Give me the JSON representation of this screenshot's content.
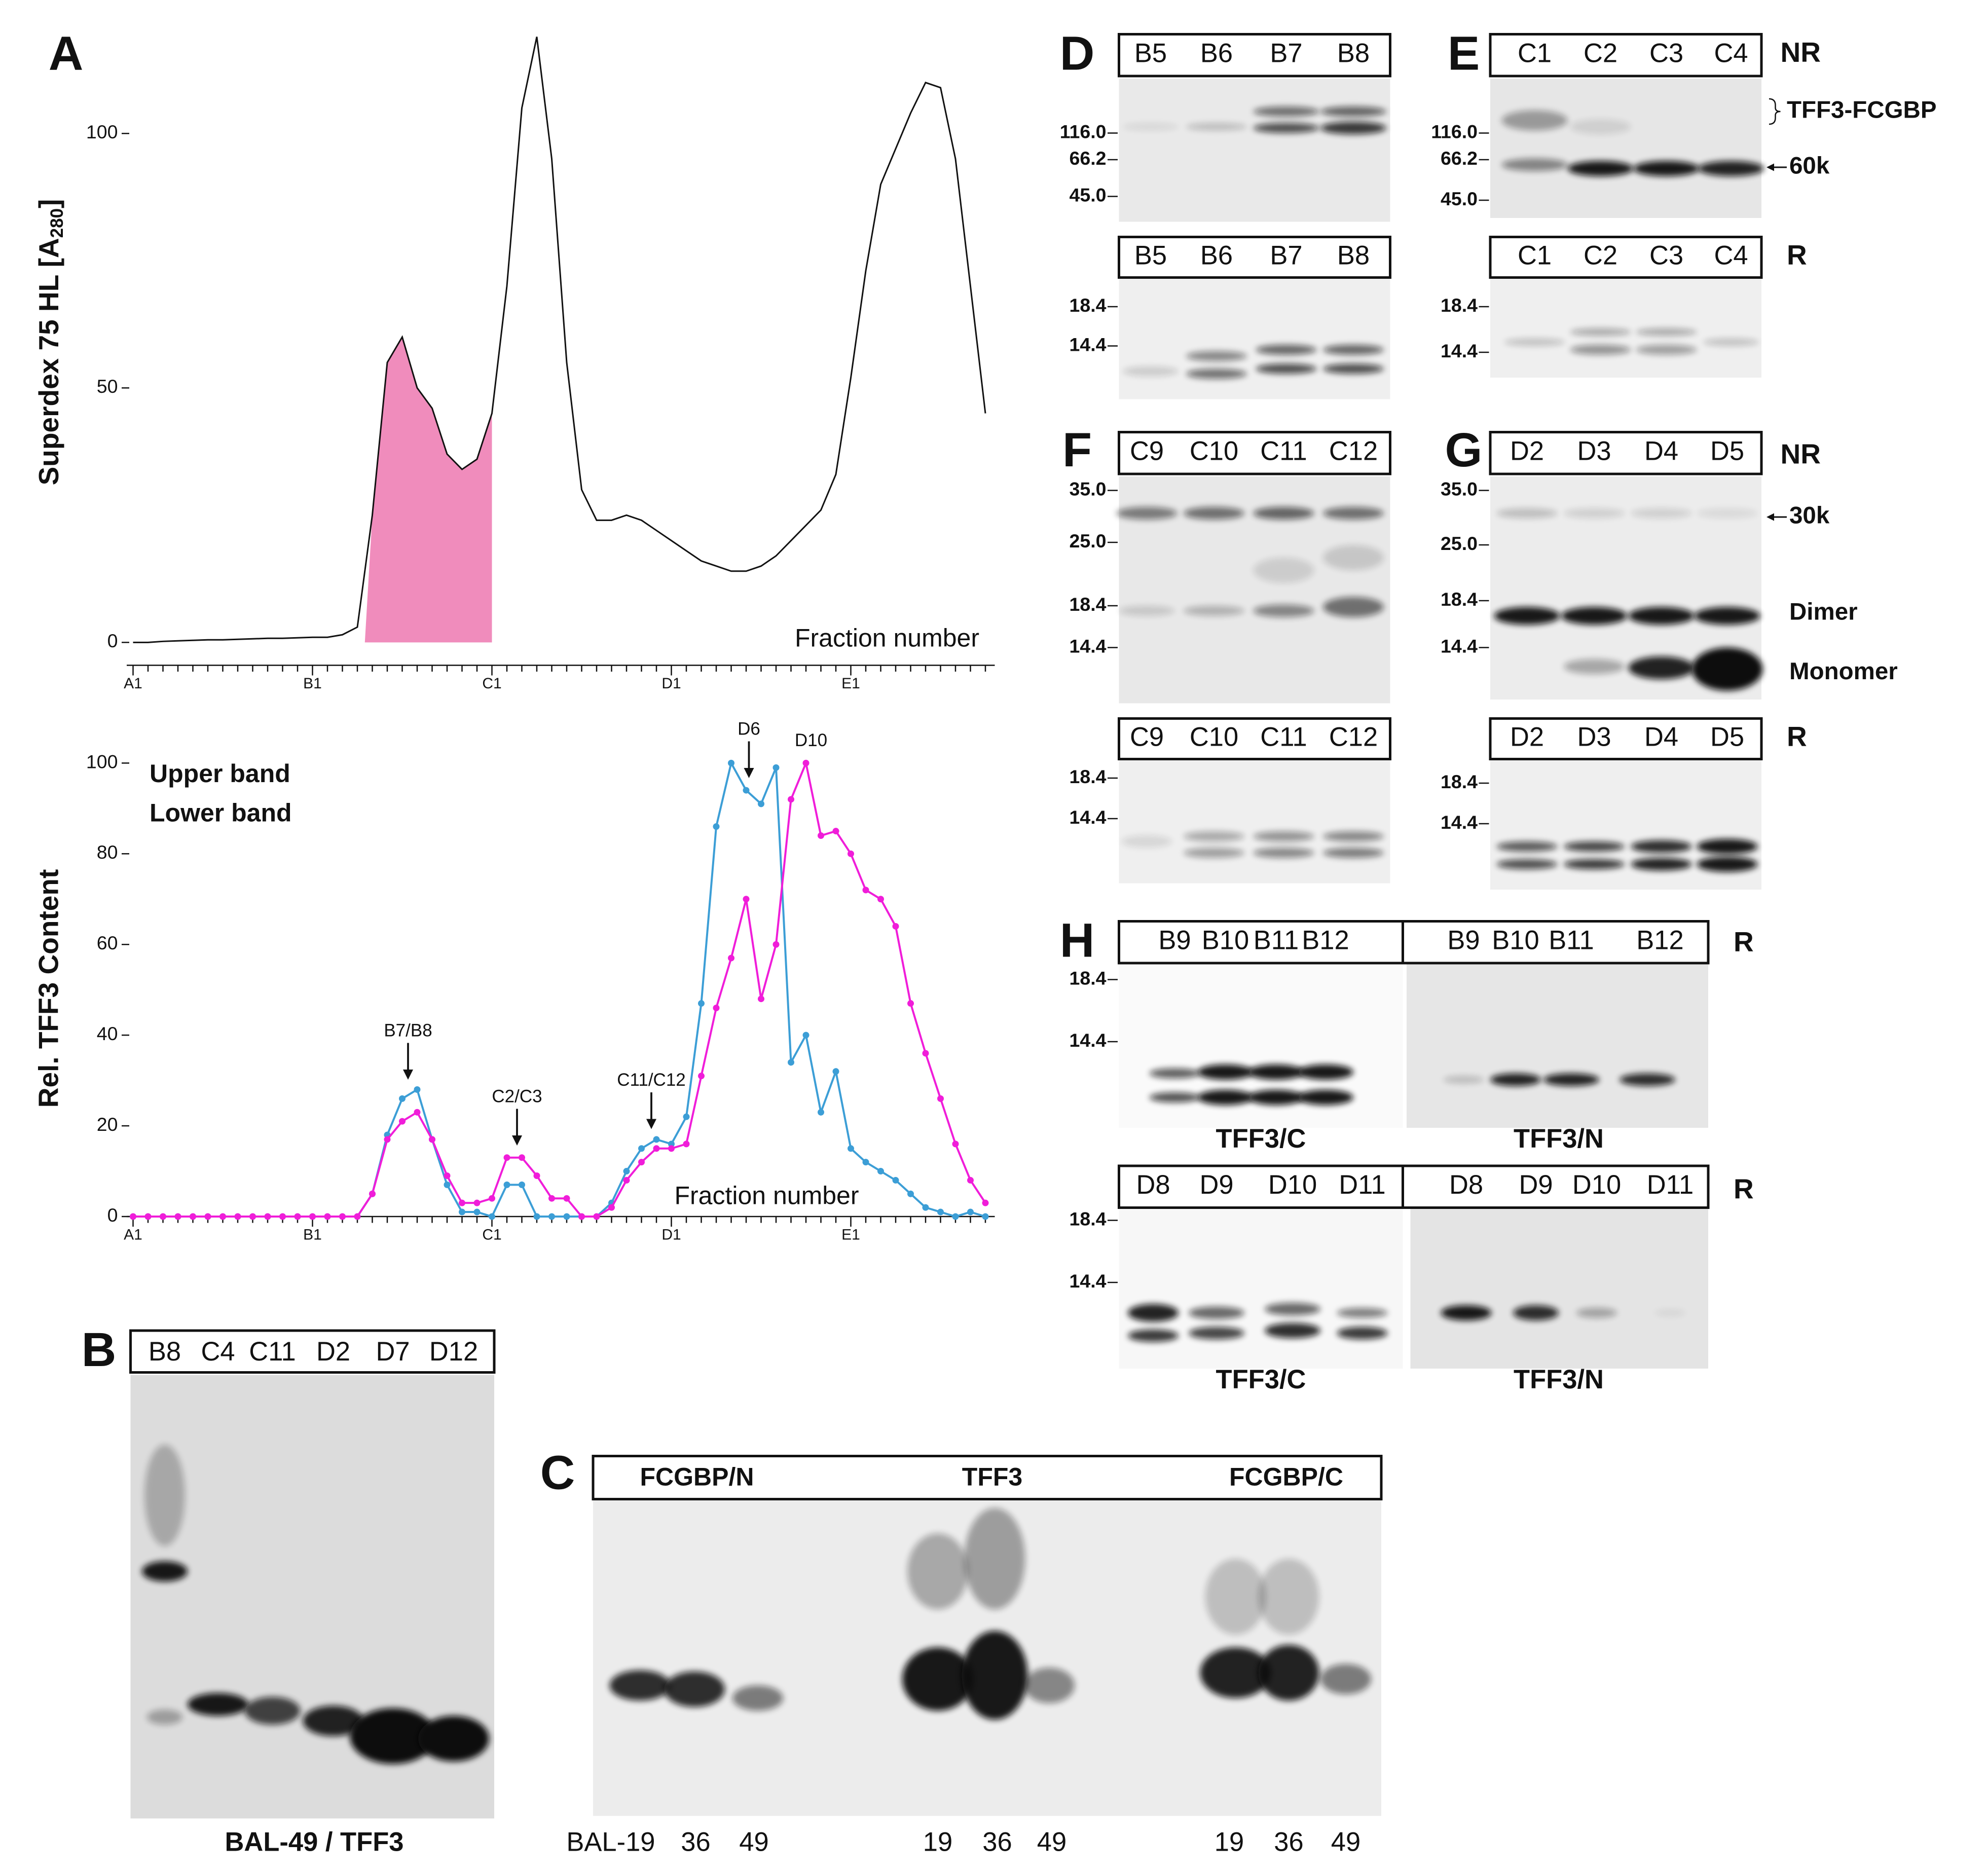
{
  "panel_a_label": "A",
  "chart_data": [
    {
      "type": "line",
      "ylabel": "Superdex 75 HL [A",
      "ylabel_sub": "280",
      "ylabel_end": "]",
      "xlabel": "Fraction number",
      "categories": [
        "A1",
        null,
        null,
        null,
        null,
        null,
        null,
        null,
        null,
        null,
        null,
        null,
        "B1",
        null,
        null,
        null,
        null,
        null,
        null,
        null,
        null,
        null,
        null,
        null,
        "C1",
        null,
        null,
        null,
        null,
        null,
        null,
        null,
        null,
        null,
        null,
        null,
        "D1",
        null,
        null,
        null,
        null,
        null,
        null,
        null,
        null,
        null,
        null,
        null,
        "E1",
        null,
        null,
        null,
        null,
        null,
        null,
        null,
        null,
        null
      ],
      "values": [
        0,
        0,
        0.2,
        0.3,
        0.4,
        0.5,
        0.5,
        0.6,
        0.7,
        0.8,
        0.8,
        0.9,
        1,
        1,
        1.5,
        3,
        25,
        55,
        60,
        50,
        46,
        37,
        34,
        36,
        45,
        70,
        105,
        119,
        95,
        55,
        30,
        24,
        24,
        25,
        24,
        22,
        20,
        18,
        16,
        15,
        14,
        14,
        15,
        17,
        20,
        23,
        26,
        33,
        52,
        73,
        90,
        97,
        104,
        110,
        109,
        95,
        70,
        45
      ],
      "color": "#111111",
      "ylim": [
        -4.5,
        120
      ],
      "yticks": [
        0,
        50,
        100
      ]
    },
    {
      "type": "line",
      "ylabel": "Rel. TFF3 Content",
      "xlabel": "Fraction number",
      "markers": true,
      "categories": [
        "A1",
        null,
        null,
        null,
        null,
        null,
        null,
        null,
        null,
        null,
        null,
        null,
        "B1",
        null,
        null,
        null,
        null,
        null,
        null,
        null,
        null,
        null,
        null,
        null,
        "C1",
        null,
        null,
        null,
        null,
        null,
        null,
        null,
        null,
        null,
        null,
        null,
        "D1",
        null,
        null,
        null,
        null,
        null,
        null,
        null,
        null,
        null,
        null,
        null,
        "E1",
        null,
        null,
        null,
        null,
        null,
        null,
        null,
        null,
        null
      ],
      "series": [
        {
          "name": "Upper band",
          "color": "#3c9ed6",
          "values": [
            0,
            0,
            0,
            0,
            0,
            0,
            0,
            0,
            0,
            0,
            0,
            0,
            0,
            0,
            0,
            0,
            5,
            18,
            26,
            28,
            17,
            7,
            1,
            1,
            0,
            7,
            7,
            0,
            0,
            0,
            0,
            0,
            3,
            10,
            15,
            17,
            16,
            22,
            47,
            86,
            100,
            94,
            91,
            99,
            34,
            40,
            23,
            32,
            15,
            12,
            10,
            8,
            5,
            2,
            1,
            0,
            1,
            0
          ]
        },
        {
          "name": "Lower band",
          "color": "#f01dd9",
          "values": [
            0,
            0,
            0,
            0,
            0,
            0,
            0,
            0,
            0,
            0,
            0,
            0,
            0,
            0,
            0,
            0,
            5,
            17,
            21,
            23,
            17,
            9,
            3,
            3,
            4,
            13,
            13,
            9,
            4,
            4,
            0,
            0,
            2,
            8,
            12,
            15,
            15,
            16,
            31,
            46,
            57,
            70,
            48,
            60,
            92,
            100,
            84,
            85,
            80,
            72,
            70,
            64,
            47,
            36,
            26,
            16,
            8,
            3
          ]
        }
      ],
      "annotations": [
        "B7/B8",
        "C2/C3",
        "C11/C12",
        "D6",
        "D10"
      ],
      "ylim": [
        0,
        102
      ],
      "yticks": [
        0,
        20,
        40,
        60,
        80,
        100
      ]
    }
  ],
  "panels": [
    {
      "label": "B",
      "lanes": [
        "B8",
        "C4",
        "C11",
        "D2",
        "D7",
        "D12"
      ],
      "caption": "BAL-49 / TFF3"
    },
    {
      "label": "C",
      "headers": [
        "FCGBP/N",
        "TFF3",
        "FCGBP/C"
      ],
      "samples": [
        "BAL-19",
        "36",
        "49",
        "19",
        "36",
        "49",
        "19",
        "36",
        "49"
      ]
    },
    {
      "label": "D",
      "blots": [
        {
          "lanes": [
            "B5",
            "B6",
            "B7",
            "B8"
          ],
          "markers": [
            "116.0",
            "66.2",
            "45.0"
          ]
        },
        {
          "lanes": [
            "B5",
            "B6",
            "B7",
            "B8"
          ],
          "markers": [
            "18.4",
            "14.4"
          ]
        }
      ]
    },
    {
      "label": "E",
      "blots": [
        {
          "lanes": [
            "C1",
            "C2",
            "C3",
            "C4"
          ],
          "condition": "NR",
          "markers": [
            "116.0",
            "66.2",
            "45.0"
          ],
          "annotations": [
            "TFF3-FCGBP",
            "60k"
          ]
        },
        {
          "lanes": [
            "C1",
            "C2",
            "C3",
            "C4"
          ],
          "condition": "R",
          "markers": [
            "18.4",
            "14.4"
          ]
        }
      ]
    },
    {
      "label": "F",
      "blots": [
        {
          "lanes": [
            "C9",
            "C10",
            "C11",
            "C12"
          ],
          "markers": [
            "35.0",
            "25.0",
            "18.4",
            "14.4"
          ]
        },
        {
          "lanes": [
            "C9",
            "C10",
            "C11",
            "C12"
          ],
          "markers": [
            "18.4",
            "14.4"
          ]
        }
      ]
    },
    {
      "label": "G",
      "blots": [
        {
          "lanes": [
            "D2",
            "D3",
            "D4",
            "D5"
          ],
          "condition": "NR",
          "markers": [
            "35.0",
            "25.0",
            "18.4",
            "14.4"
          ],
          "annotations": [
            "30k",
            "Dimer",
            "Monomer"
          ]
        },
        {
          "lanes": [
            "D2",
            "D3",
            "D4",
            "D5"
          ],
          "condition": "R",
          "markers": [
            "18.4",
            "14.4"
          ]
        }
      ]
    },
    {
      "label": "H",
      "blots": [
        {
          "lanes": [
            "B9",
            "B10",
            "B11",
            "B12",
            "B9",
            "B10",
            "B11",
            "B12"
          ],
          "condition": "R",
          "markers": [
            "18.4",
            "14.4"
          ],
          "antibodies": [
            "TFF3/C",
            "TFF3/N"
          ]
        },
        {
          "lanes": [
            "D8",
            "D9",
            "D10",
            "D11",
            "D8",
            "D9",
            "D10",
            "D11"
          ],
          "condition": "R",
          "markers": [
            "18.4",
            "14.4"
          ],
          "antibodies": [
            "TFF3/C",
            "TFF3/N"
          ]
        }
      ]
    }
  ]
}
